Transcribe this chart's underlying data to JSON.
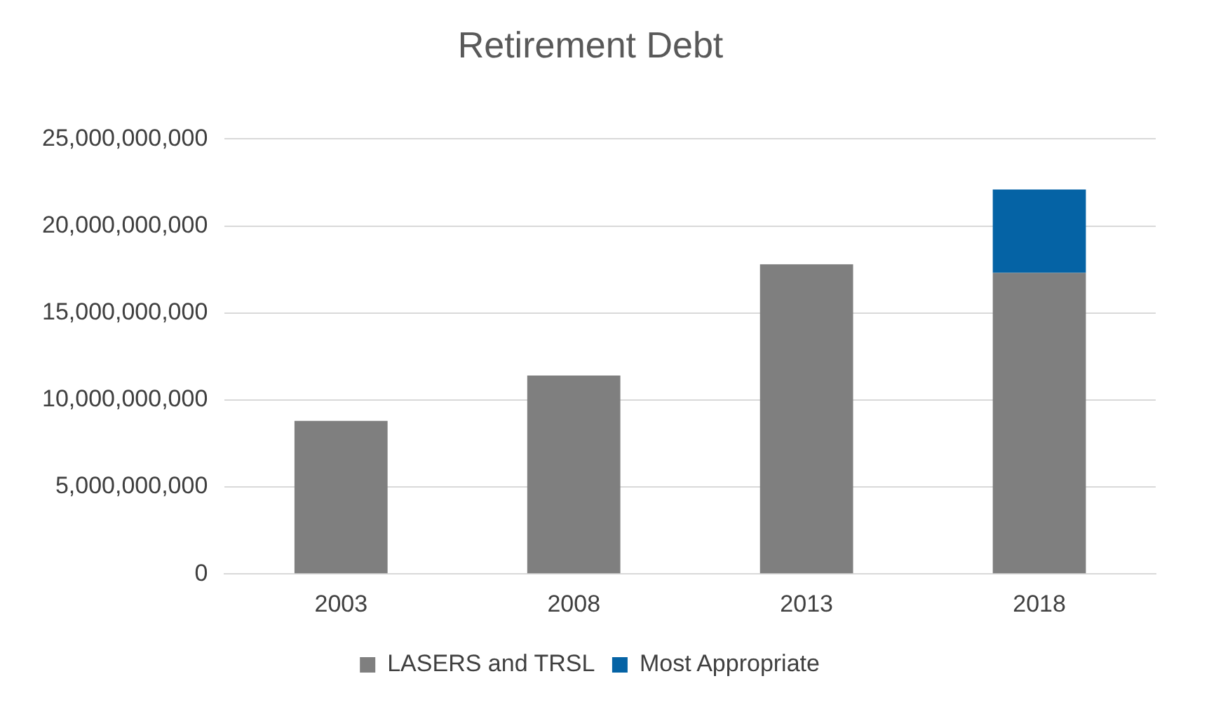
{
  "chart_data": {
    "type": "bar",
    "title": "Retirement Debt",
    "categories": [
      "2003",
      "2008",
      "2013",
      "2018"
    ],
    "series": [
      {
        "name": "LASERS and TRSL",
        "color": "#7f7f7f",
        "values": [
          8800000000,
          11400000000,
          17800000000,
          17300000000
        ]
      },
      {
        "name": "Most Appropriate",
        "color": "#0563a5",
        "values": [
          null,
          null,
          null,
          4800000000
        ]
      }
    ],
    "stacked": true,
    "ylim": [
      0,
      25000000000
    ],
    "yticks": [
      {
        "value": 0,
        "label": "0"
      },
      {
        "value": 5000000000,
        "label": "5,000,000,000"
      },
      {
        "value": 10000000000,
        "label": "10,000,000,000"
      },
      {
        "value": 15000000000,
        "label": "15,000,000,000"
      },
      {
        "value": 20000000000,
        "label": "20,000,000,000"
      },
      {
        "value": 25000000000,
        "label": "25,000,000,000"
      }
    ],
    "grid": "y",
    "legend": "bottom"
  }
}
